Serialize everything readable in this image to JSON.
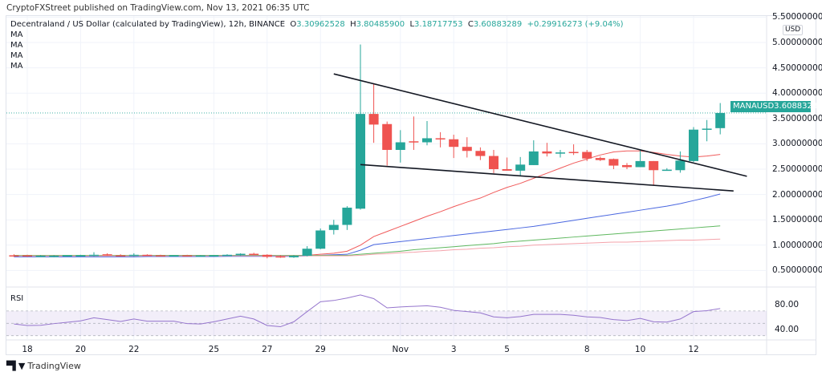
{
  "header": {
    "published": "CryptoFXStreet published on TradingView.com, Nov 13, 2021 06:35 UTC"
  },
  "legend": {
    "symbol": "Decentraland / US Dollar (calculated by TradingView), 12h, BINANCE",
    "o_label": "O",
    "o": "3.30962528",
    "h_label": "H",
    "h": "3.80485900",
    "l_label": "L",
    "l": "3.18717753",
    "c_label": "C",
    "c": "3.60883289",
    "change": "+0.29916273 (+9.04%)",
    "indicators": [
      "MA",
      "MA",
      "MA",
      "MA"
    ]
  },
  "price_axis": {
    "currency": "USD",
    "ticks": [
      "5.50000000",
      "5.00000000",
      "4.50000000",
      "4.00000000",
      "3.50000000",
      "3.00000000",
      "2.50000000",
      "2.00000000",
      "1.50000000",
      "1.00000000",
      "0.50000000"
    ]
  },
  "last_price": {
    "symbol": "MANAUSD",
    "value": "3.60883289"
  },
  "rsi": {
    "label": "RSI",
    "ticks": [
      "80.00",
      "40.00"
    ]
  },
  "brand": {
    "logo": "TV",
    "name": "TradingView"
  },
  "colors": {
    "up": "#26a69a",
    "down": "#ef5350",
    "ma1": "#f05a5a",
    "ma2": "#4a67e0",
    "ma3": "#5fb85f",
    "ma4": "#f4a3ab",
    "rsi": "#9575cd",
    "trendline": "#131722"
  },
  "chart_data": {
    "type": "candlestick",
    "interval": "12h",
    "ylim": [
      0.3,
      5.6
    ],
    "x_ticks": [
      {
        "label": "18",
        "t": "2021-10-18T00"
      },
      {
        "label": "20",
        "t": "2021-10-20T00"
      },
      {
        "label": "22",
        "t": "2021-10-22T00"
      },
      {
        "label": "25",
        "t": "2021-10-25T00"
      },
      {
        "label": "27",
        "t": "2021-10-27T00"
      },
      {
        "label": "29",
        "t": "2021-10-29T00"
      },
      {
        "label": "Nov",
        "t": "2021-11-01T00"
      },
      {
        "label": "3",
        "t": "2021-11-03T00"
      },
      {
        "label": "5",
        "t": "2021-11-05T00"
      },
      {
        "label": "8",
        "t": "2021-11-08T00"
      },
      {
        "label": "10",
        "t": "2021-11-10T00"
      },
      {
        "label": "12",
        "t": "2021-11-12T00"
      }
    ],
    "candles": [
      [
        "2021-10-17T12",
        0.8,
        0.82,
        0.77,
        0.78
      ],
      [
        "2021-10-18T00",
        0.8,
        0.81,
        0.77,
        0.78
      ],
      [
        "2021-10-18T12",
        0.78,
        0.8,
        0.77,
        0.79
      ],
      [
        "2021-10-19T00",
        0.78,
        0.8,
        0.76,
        0.79
      ],
      [
        "2021-10-19T12",
        0.78,
        0.8,
        0.77,
        0.8
      ],
      [
        "2021-10-20T00",
        0.79,
        0.81,
        0.78,
        0.8
      ],
      [
        "2021-10-20T12",
        0.79,
        0.86,
        0.78,
        0.81
      ],
      [
        "2021-10-21T00",
        0.82,
        0.84,
        0.79,
        0.8
      ],
      [
        "2021-10-21T12",
        0.8,
        0.82,
        0.78,
        0.79
      ],
      [
        "2021-10-22T00",
        0.79,
        0.84,
        0.78,
        0.81
      ],
      [
        "2021-10-22T12",
        0.81,
        0.82,
        0.79,
        0.8
      ],
      [
        "2021-10-23T00",
        0.8,
        0.81,
        0.79,
        0.79
      ],
      [
        "2021-10-23T12",
        0.79,
        0.8,
        0.78,
        0.8
      ],
      [
        "2021-10-24T00",
        0.8,
        0.81,
        0.78,
        0.79
      ],
      [
        "2021-10-24T12",
        0.79,
        0.8,
        0.78,
        0.795
      ],
      [
        "2021-10-25T00",
        0.79,
        0.8,
        0.78,
        0.8
      ],
      [
        "2021-10-25T12",
        0.8,
        0.82,
        0.79,
        0.81
      ],
      [
        "2021-10-26T00",
        0.8,
        0.84,
        0.79,
        0.83
      ],
      [
        "2021-10-26T12",
        0.83,
        0.85,
        0.8,
        0.81
      ],
      [
        "2021-10-27T00",
        0.81,
        0.82,
        0.74,
        0.77
      ],
      [
        "2021-10-27T12",
        0.78,
        0.8,
        0.75,
        0.76
      ],
      [
        "2021-10-28T00",
        0.76,
        0.8,
        0.75,
        0.79
      ],
      [
        "2021-10-28T12",
        0.79,
        0.98,
        0.78,
        0.93
      ],
      [
        "2021-10-29T00",
        0.93,
        1.33,
        0.92,
        1.29
      ],
      [
        "2021-10-29T12",
        1.3,
        1.5,
        1.21,
        1.4
      ],
      [
        "2021-10-30T00",
        1.4,
        1.77,
        1.3,
        1.74
      ],
      [
        "2021-10-30T12",
        1.72,
        4.96,
        1.7,
        3.59
      ],
      [
        "2021-10-31T00",
        3.59,
        4.18,
        3.02,
        3.38
      ],
      [
        "2021-10-31T12",
        3.39,
        3.44,
        2.57,
        2.88
      ],
      [
        "2021-11-01T00",
        2.88,
        3.27,
        2.63,
        3.03
      ],
      [
        "2021-11-01T12",
        3.05,
        3.54,
        2.88,
        3.03
      ],
      [
        "2021-11-02T00",
        3.03,
        3.45,
        2.97,
        3.11
      ],
      [
        "2021-11-02T12",
        3.11,
        3.23,
        2.93,
        3.09
      ],
      [
        "2021-11-03T00",
        3.09,
        3.18,
        2.72,
        2.94
      ],
      [
        "2021-11-03T12",
        2.94,
        3.13,
        2.73,
        2.86
      ],
      [
        "2021-11-04T00",
        2.86,
        2.93,
        2.68,
        2.76
      ],
      [
        "2021-11-04T12",
        2.76,
        2.88,
        2.42,
        2.5
      ],
      [
        "2021-11-05T00",
        2.5,
        2.73,
        2.47,
        2.47
      ],
      [
        "2021-11-05T12",
        2.47,
        2.74,
        2.36,
        2.59
      ],
      [
        "2021-11-06T00",
        2.58,
        3.07,
        2.58,
        2.85
      ],
      [
        "2021-11-06T12",
        2.85,
        3.02,
        2.75,
        2.81
      ],
      [
        "2021-11-07T00",
        2.81,
        2.88,
        2.73,
        2.83
      ],
      [
        "2021-11-07T12",
        2.84,
        2.99,
        2.78,
        2.82
      ],
      [
        "2021-11-08T00",
        2.84,
        2.88,
        2.66,
        2.71
      ],
      [
        "2021-11-08T12",
        2.72,
        2.75,
        2.66,
        2.68
      ],
      [
        "2021-11-09T00",
        2.7,
        2.71,
        2.5,
        2.57
      ],
      [
        "2021-11-09T12",
        2.58,
        2.62,
        2.5,
        2.54
      ],
      [
        "2021-11-10T00",
        2.54,
        2.88,
        2.54,
        2.66
      ],
      [
        "2021-11-10T12",
        2.66,
        2.66,
        2.19,
        2.48
      ],
      [
        "2021-11-11T00",
        2.48,
        2.52,
        2.47,
        2.49
      ],
      [
        "2021-11-11T12",
        2.48,
        2.85,
        2.43,
        2.67
      ],
      [
        "2021-11-12T00",
        2.66,
        3.33,
        2.64,
        3.28
      ],
      [
        "2021-11-12T12",
        3.28,
        3.47,
        3.05,
        3.3
      ],
      [
        "2021-11-13T00",
        3.30962528,
        3.804859,
        3.18717753,
        3.60883289
      ]
    ],
    "moving_averages": [
      {
        "color_key": "ma1",
        "values": [
          0.79,
          0.79,
          0.79,
          0.79,
          0.79,
          0.79,
          0.79,
          0.79,
          0.79,
          0.79,
          0.79,
          0.79,
          0.79,
          0.79,
          0.79,
          0.79,
          0.79,
          0.79,
          0.79,
          0.79,
          0.79,
          0.79,
          0.8,
          0.82,
          0.84,
          0.88,
          1.0,
          1.17,
          1.27,
          1.37,
          1.47,
          1.57,
          1.66,
          1.76,
          1.85,
          1.93,
          2.04,
          2.14,
          2.22,
          2.32,
          2.42,
          2.52,
          2.62,
          2.7,
          2.78,
          2.84,
          2.86,
          2.86,
          2.83,
          2.79,
          2.76,
          2.74,
          2.76,
          2.79
        ]
      },
      {
        "color_key": "ma2",
        "values": [
          0.77,
          0.77,
          0.77,
          0.77,
          0.77,
          0.77,
          0.77,
          0.77,
          0.77,
          0.77,
          0.775,
          0.775,
          0.775,
          0.775,
          0.775,
          0.775,
          0.78,
          0.78,
          0.78,
          0.78,
          0.78,
          0.78,
          0.79,
          0.8,
          0.81,
          0.82,
          0.9,
          1.01,
          1.04,
          1.07,
          1.1,
          1.13,
          1.16,
          1.19,
          1.22,
          1.25,
          1.28,
          1.31,
          1.34,
          1.37,
          1.41,
          1.45,
          1.49,
          1.53,
          1.57,
          1.61,
          1.65,
          1.69,
          1.73,
          1.77,
          1.82,
          1.88,
          1.94,
          2.01
        ]
      },
      {
        "color_key": "ma3",
        "values": [
          0.8,
          0.8,
          0.8,
          0.8,
          0.8,
          0.8,
          0.8,
          0.8,
          0.8,
          0.8,
          0.8,
          0.8,
          0.8,
          0.8,
          0.8,
          0.8,
          0.8,
          0.8,
          0.8,
          0.8,
          0.8,
          0.8,
          0.8,
          0.8,
          0.8,
          0.8,
          0.82,
          0.84,
          0.86,
          0.88,
          0.91,
          0.93,
          0.95,
          0.97,
          0.99,
          1.01,
          1.03,
          1.06,
          1.08,
          1.1,
          1.12,
          1.14,
          1.16,
          1.18,
          1.2,
          1.22,
          1.24,
          1.26,
          1.28,
          1.3,
          1.32,
          1.34,
          1.36,
          1.38
        ]
      },
      {
        "color_key": "ma4",
        "values": [
          0.79,
          0.79,
          0.79,
          0.79,
          0.79,
          0.79,
          0.79,
          0.79,
          0.79,
          0.79,
          0.79,
          0.79,
          0.79,
          0.79,
          0.79,
          0.79,
          0.79,
          0.79,
          0.79,
          0.79,
          0.79,
          0.79,
          0.79,
          0.79,
          0.79,
          0.79,
          0.8,
          0.82,
          0.83,
          0.85,
          0.86,
          0.88,
          0.89,
          0.91,
          0.92,
          0.94,
          0.95,
          0.97,
          0.98,
          1.0,
          1.01,
          1.02,
          1.03,
          1.04,
          1.05,
          1.06,
          1.06,
          1.07,
          1.08,
          1.09,
          1.1,
          1.1,
          1.11,
          1.12
        ]
      }
    ],
    "trendlines": [
      {
        "from": [
          "2021-10-29T12",
          4.38
        ],
        "to": [
          "2021-11-14T00",
          2.36
        ]
      },
      {
        "from": [
          "2021-10-30T12",
          2.59
        ],
        "to": [
          "2021-11-13T12",
          2.07
        ]
      }
    ],
    "rsi": {
      "levels": [
        70,
        50,
        30
      ],
      "ylim": [
        0,
        100
      ],
      "values": [
        49,
        46.5,
        46.8,
        49.5,
        51.7,
        54,
        59,
        56,
        53,
        57,
        53.5,
        53.5,
        53.5,
        49.5,
        49,
        52.5,
        57,
        61.5,
        57,
        46.5,
        44.5,
        52.5,
        69,
        85,
        87,
        91,
        96,
        90,
        75,
        76.6,
        77.5,
        78.5,
        76,
        71,
        69,
        67,
        60.5,
        59,
        61,
        64.5,
        64.5,
        64.5,
        63,
        60.5,
        59.5,
        56,
        54.5,
        58,
        52.5,
        52,
        57,
        69,
        70.5,
        74
      ]
    }
  }
}
